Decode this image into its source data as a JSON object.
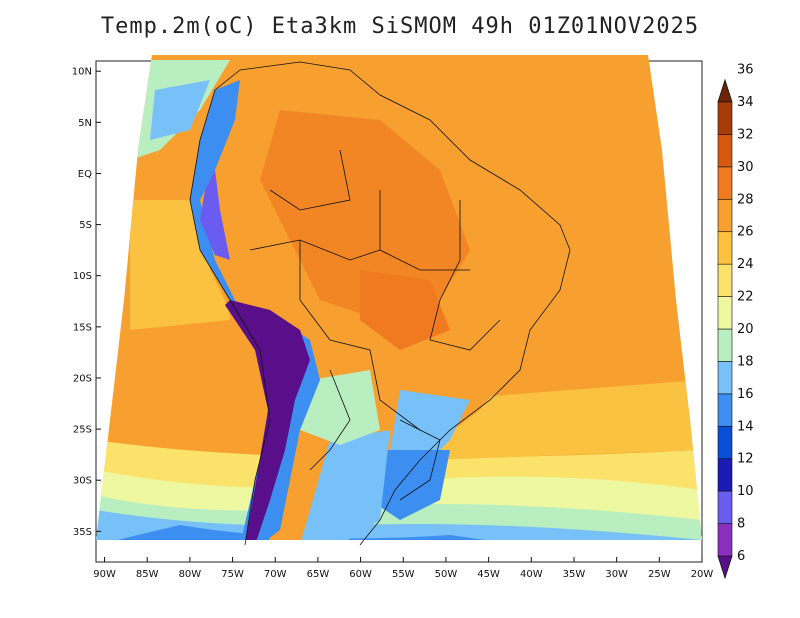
{
  "title": "Temp.2m(oC) Eta3km SiSMOM 49h 01Z01NOV2025",
  "map": {
    "lat_labels": [
      "10N",
      "5N",
      "EQ",
      "5S",
      "10S",
      "15S",
      "20S",
      "25S",
      "30S",
      "35S"
    ],
    "lon_labels": [
      "90W",
      "85W",
      "80W",
      "75W",
      "70W",
      "65W",
      "60W",
      "55W",
      "50W",
      "45W",
      "40W",
      "35W",
      "30W",
      "25W",
      "20W"
    ],
    "lat_values": [
      10,
      5,
      0,
      -5,
      -10,
      -15,
      -20,
      -25,
      -30,
      -35
    ],
    "lon_values": [
      -90,
      -85,
      -80,
      -75,
      -70,
      -65,
      -60,
      -55,
      -50,
      -45,
      -40,
      -35,
      -30,
      -25,
      -20
    ],
    "lat_range": [
      -38,
      11
    ],
    "lon_range": [
      -91,
      -20
    ]
  },
  "colorbar": {
    "min": 6,
    "max": 36,
    "labels": [
      "6",
      "8",
      "10",
      "12",
      "14",
      "16",
      "18",
      "20",
      "22",
      "24",
      "26",
      "28",
      "30",
      "32",
      "34",
      "36"
    ],
    "colors": [
      "#5a0f8a",
      "#8a2fc0",
      "#6a5cf0",
      "#1a1ab4",
      "#0a4fd8",
      "#3c8ef0",
      "#78c0f8",
      "#b8eec0",
      "#eef8a0",
      "#fbe26a",
      "#fbc140",
      "#f7a030",
      "#ef7a20",
      "#d55a10",
      "#a83c08",
      "#6e2404"
    ]
  }
}
